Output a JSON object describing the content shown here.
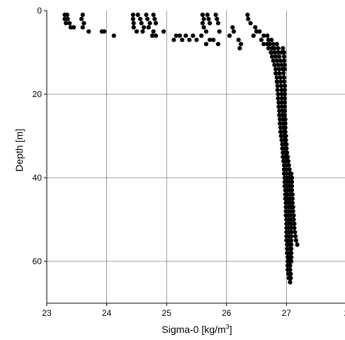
{
  "chart_data": {
    "type": "scatter",
    "xlabel": "Sigma-0 [kg/m",
    "xlabel_superscript": "3",
    "xlabel_suffix": "]",
    "ylabel": "Depth [m]",
    "xlim": [
      23,
      28
    ],
    "ylim": [
      0,
      70
    ],
    "y_inverted": true,
    "grid": true,
    "x_ticks": [
      "23",
      "24",
      "25",
      "26",
      "27",
      "2"
    ],
    "y_ticks": [
      "0",
      "20",
      "40",
      "60"
    ],
    "marker_color": "#000000",
    "grid_color": "#808080",
    "points": [
      [
        23.3,
        1
      ],
      [
        23.34,
        1
      ],
      [
        23.3,
        2
      ],
      [
        23.35,
        2
      ],
      [
        23.32,
        3
      ],
      [
        23.38,
        3
      ],
      [
        23.4,
        4
      ],
      [
        23.45,
        4
      ],
      [
        23.6,
        1
      ],
      [
        23.58,
        2
      ],
      [
        23.62,
        3
      ],
      [
        23.6,
        4
      ],
      [
        23.7,
        5
      ],
      [
        23.92,
        5
      ],
      [
        23.96,
        5
      ],
      [
        24.12,
        6
      ],
      [
        24.44,
        1
      ],
      [
        24.44,
        2
      ],
      [
        24.45,
        3
      ],
      [
        24.45,
        4
      ],
      [
        24.5,
        5
      ],
      [
        24.52,
        1
      ],
      [
        24.56,
        2
      ],
      [
        24.58,
        3
      ],
      [
        24.62,
        4
      ],
      [
        24.6,
        5
      ],
      [
        24.66,
        1
      ],
      [
        24.68,
        2
      ],
      [
        24.72,
        3
      ],
      [
        24.7,
        4
      ],
      [
        24.78,
        1
      ],
      [
        24.8,
        2
      ],
      [
        24.82,
        3
      ],
      [
        24.78,
        5
      ],
      [
        24.76,
        6
      ],
      [
        24.82,
        6
      ],
      [
        24.95,
        5
      ],
      [
        25.16,
        6
      ],
      [
        25.12,
        7
      ],
      [
        25.22,
        6
      ],
      [
        25.26,
        7
      ],
      [
        25.32,
        6
      ],
      [
        25.38,
        7
      ],
      [
        25.44,
        6
      ],
      [
        25.5,
        7
      ],
      [
        25.6,
        1
      ],
      [
        25.62,
        2
      ],
      [
        25.6,
        3
      ],
      [
        25.62,
        4
      ],
      [
        25.66,
        5
      ],
      [
        25.68,
        1
      ],
      [
        25.7,
        2
      ],
      [
        25.72,
        3
      ],
      [
        25.58,
        6
      ],
      [
        25.66,
        8
      ],
      [
        25.72,
        7
      ],
      [
        25.78,
        7
      ],
      [
        25.82,
        1
      ],
      [
        25.84,
        2
      ],
      [
        25.86,
        3
      ],
      [
        25.88,
        5
      ],
      [
        25.86,
        8
      ],
      [
        26.05,
        6
      ],
      [
        26.1,
        4
      ],
      [
        26.12,
        5
      ],
      [
        26.2,
        7
      ],
      [
        26.24,
        8
      ],
      [
        26.22,
        9
      ],
      [
        26.35,
        1
      ],
      [
        26.36,
        2
      ],
      [
        26.4,
        3
      ],
      [
        26.48,
        4
      ],
      [
        26.5,
        5
      ],
      [
        26.45,
        6
      ],
      [
        26.55,
        5
      ],
      [
        26.62,
        6
      ],
      [
        26.68,
        6
      ],
      [
        26.58,
        7
      ],
      [
        26.7,
        7
      ],
      [
        26.75,
        7
      ],
      [
        26.62,
        8
      ],
      [
        26.68,
        8
      ],
      [
        26.72,
        8
      ],
      [
        26.78,
        8
      ],
      [
        26.84,
        8
      ],
      [
        26.7,
        9
      ],
      [
        26.76,
        9
      ],
      [
        26.8,
        9
      ],
      [
        26.86,
        9
      ],
      [
        26.94,
        9
      ],
      [
        26.74,
        10
      ],
      [
        26.8,
        10
      ],
      [
        26.86,
        10
      ],
      [
        26.92,
        10
      ],
      [
        26.96,
        10
      ],
      [
        26.76,
        11
      ],
      [
        26.82,
        11
      ],
      [
        26.88,
        11
      ],
      [
        26.96,
        11
      ],
      [
        26.78,
        12
      ],
      [
        26.84,
        12
      ],
      [
        26.9,
        12
      ],
      [
        26.96,
        12
      ],
      [
        26.8,
        13
      ],
      [
        26.86,
        13
      ],
      [
        26.92,
        13
      ],
      [
        26.97,
        13
      ],
      [
        26.82,
        14
      ],
      [
        26.88,
        14
      ],
      [
        26.94,
        14
      ],
      [
        26.97,
        14
      ],
      [
        26.82,
        15
      ],
      [
        26.88,
        15
      ],
      [
        26.95,
        15
      ],
      [
        26.84,
        16
      ],
      [
        26.9,
        16
      ],
      [
        26.96,
        16
      ],
      [
        26.84,
        17
      ],
      [
        26.9,
        17
      ],
      [
        26.96,
        17
      ],
      [
        26.85,
        18
      ],
      [
        26.91,
        18
      ],
      [
        26.97,
        18
      ],
      [
        26.85,
        19
      ],
      [
        26.92,
        19
      ],
      [
        26.97,
        19
      ],
      [
        26.86,
        20
      ],
      [
        26.92,
        20
      ],
      [
        26.97,
        20
      ],
      [
        26.86,
        21
      ],
      [
        26.92,
        21
      ],
      [
        26.97,
        21
      ],
      [
        26.87,
        22
      ],
      [
        26.92,
        22
      ],
      [
        26.97,
        22
      ],
      [
        26.87,
        23
      ],
      [
        26.92,
        23
      ],
      [
        26.97,
        23
      ],
      [
        26.88,
        24
      ],
      [
        26.93,
        24
      ],
      [
        26.97,
        24
      ],
      [
        26.88,
        25
      ],
      [
        26.93,
        25
      ],
      [
        26.97,
        25
      ],
      [
        26.89,
        26
      ],
      [
        26.94,
        26
      ],
      [
        26.98,
        26
      ],
      [
        26.89,
        27
      ],
      [
        26.94,
        27
      ],
      [
        26.98,
        27
      ],
      [
        26.9,
        28
      ],
      [
        26.95,
        28
      ],
      [
        26.98,
        28
      ],
      [
        26.9,
        29
      ],
      [
        26.95,
        29
      ],
      [
        26.98,
        29
      ],
      [
        26.91,
        30
      ],
      [
        26.96,
        30
      ],
      [
        26.99,
        30
      ],
      [
        26.92,
        31
      ],
      [
        26.97,
        31
      ],
      [
        26.99,
        31
      ],
      [
        26.93,
        32
      ],
      [
        26.97,
        32
      ],
      [
        27.0,
        32
      ],
      [
        26.93,
        33
      ],
      [
        26.97,
        33
      ],
      [
        27.0,
        33
      ],
      [
        26.94,
        34
      ],
      [
        26.98,
        34
      ],
      [
        27.01,
        34
      ],
      [
        26.94,
        35
      ],
      [
        26.98,
        35
      ],
      [
        27.02,
        35
      ],
      [
        26.95,
        36
      ],
      [
        26.99,
        36
      ],
      [
        27.03,
        36
      ],
      [
        26.96,
        37
      ],
      [
        27.0,
        37
      ],
      [
        27.04,
        37
      ],
      [
        26.96,
        38
      ],
      [
        27.0,
        38
      ],
      [
        27.05,
        38
      ],
      [
        26.96,
        39
      ],
      [
        27.0,
        39
      ],
      [
        27.05,
        39
      ],
      [
        27.08,
        39
      ],
      [
        26.97,
        40
      ],
      [
        27.01,
        40
      ],
      [
        27.05,
        40
      ],
      [
        27.09,
        40
      ],
      [
        26.97,
        41
      ],
      [
        27.01,
        41
      ],
      [
        27.05,
        41
      ],
      [
        27.09,
        41
      ],
      [
        26.97,
        42
      ],
      [
        27.01,
        42
      ],
      [
        27.05,
        42
      ],
      [
        27.09,
        42
      ],
      [
        26.98,
        43
      ],
      [
        27.02,
        43
      ],
      [
        27.06,
        43
      ],
      [
        27.09,
        43
      ],
      [
        26.98,
        44
      ],
      [
        27.02,
        44
      ],
      [
        27.06,
        44
      ],
      [
        27.1,
        44
      ],
      [
        26.98,
        45
      ],
      [
        27.02,
        45
      ],
      [
        27.06,
        45
      ],
      [
        27.1,
        45
      ],
      [
        26.99,
        46
      ],
      [
        27.03,
        46
      ],
      [
        27.06,
        46
      ],
      [
        27.1,
        46
      ],
      [
        26.99,
        47
      ],
      [
        27.03,
        47
      ],
      [
        27.07,
        47
      ],
      [
        27.11,
        47
      ],
      [
        26.99,
        48
      ],
      [
        27.03,
        48
      ],
      [
        27.07,
        48
      ],
      [
        27.11,
        48
      ],
      [
        26.99,
        49
      ],
      [
        27.03,
        49
      ],
      [
        27.07,
        49
      ],
      [
        27.12,
        49
      ],
      [
        27.0,
        50
      ],
      [
        27.04,
        50
      ],
      [
        27.08,
        50
      ],
      [
        27.12,
        50
      ],
      [
        27.0,
        51
      ],
      [
        27.04,
        51
      ],
      [
        27.08,
        51
      ],
      [
        27.13,
        51
      ],
      [
        27.0,
        52
      ],
      [
        27.04,
        52
      ],
      [
        27.08,
        52
      ],
      [
        27.13,
        52
      ],
      [
        27.0,
        53
      ],
      [
        27.04,
        53
      ],
      [
        27.08,
        53
      ],
      [
        27.14,
        53
      ],
      [
        27.0,
        54
      ],
      [
        27.04,
        54
      ],
      [
        27.08,
        54
      ],
      [
        27.15,
        54
      ],
      [
        27.0,
        55
      ],
      [
        27.04,
        55
      ],
      [
        27.08,
        55
      ],
      [
        27.16,
        55
      ],
      [
        27.01,
        56
      ],
      [
        27.05,
        56
      ],
      [
        27.08,
        56
      ],
      [
        27.18,
        56
      ],
      [
        27.01,
        57
      ],
      [
        27.05,
        57
      ],
      [
        27.08,
        57
      ],
      [
        27.01,
        58
      ],
      [
        27.05,
        58
      ],
      [
        27.08,
        58
      ],
      [
        27.02,
        59
      ],
      [
        27.05,
        59
      ],
      [
        27.08,
        59
      ],
      [
        27.02,
        60
      ],
      [
        27.05,
        60
      ],
      [
        27.08,
        60
      ],
      [
        27.02,
        61
      ],
      [
        27.06,
        61
      ],
      [
        27.02,
        62
      ],
      [
        27.06,
        62
      ],
      [
        27.03,
        63
      ],
      [
        27.07,
        63
      ],
      [
        27.04,
        64
      ],
      [
        27.07,
        64
      ],
      [
        27.06,
        65
      ]
    ]
  }
}
